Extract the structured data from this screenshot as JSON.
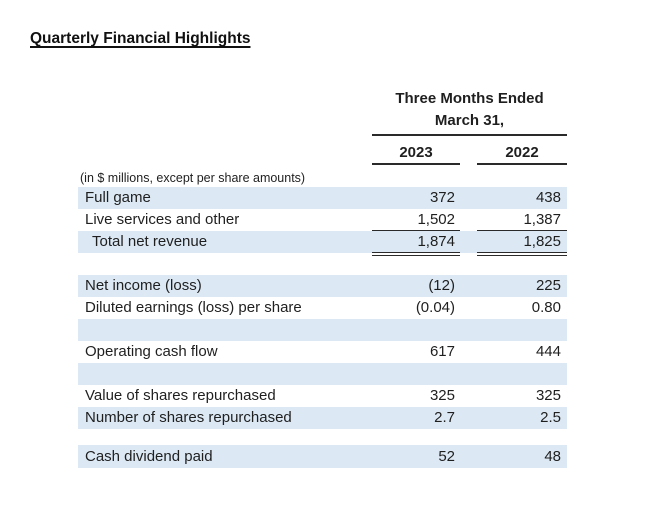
{
  "page": {
    "title": "Quarterly Financial Highlights"
  },
  "table": {
    "header": {
      "period_line1": "Three Months Ended",
      "period_line2": "March 31,",
      "col_2023": "2023",
      "col_2022": "2022"
    },
    "note": "(in $ millions, except per share amounts)",
    "rows": {
      "full_game": {
        "label": "Full game",
        "y2023": "372",
        "y2022": "438"
      },
      "live_services": {
        "label": "Live services and other",
        "y2023": "1,502",
        "y2022": "1,387"
      },
      "total_net_revenue": {
        "label": "Total net revenue",
        "y2023": "1,874",
        "y2022": "1,825"
      },
      "net_income": {
        "label": "Net income (loss)",
        "y2023": "(12)",
        "y2022": "225"
      },
      "diluted_eps": {
        "label": "Diluted earnings (loss) per share",
        "y2023": "(0.04)",
        "y2022": "0.80"
      },
      "operating_cash_flow": {
        "label": "Operating cash flow",
        "y2023": "617",
        "y2022": "444"
      },
      "value_shares_repurchased": {
        "label": "Value of shares repurchased",
        "y2023": "325",
        "y2022": "325"
      },
      "number_shares_repurchased": {
        "label": "Number of shares repurchased",
        "y2023": "2.7",
        "y2022": "2.5"
      },
      "cash_dividend": {
        "label": "Cash dividend paid",
        "y2023": "52",
        "y2022": "48"
      }
    },
    "colors": {
      "row_shade": "#dce9f5",
      "text": "#1f1f1f",
      "rule": "#2a2a2a"
    }
  }
}
